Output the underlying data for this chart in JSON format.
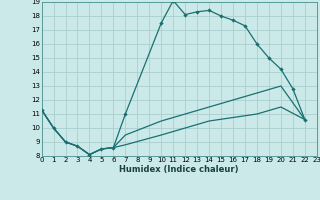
{
  "xlabel": "Humidex (Indice chaleur)",
  "bg_color": "#cce9e9",
  "grid_color": "#aacfcf",
  "line_color": "#1a7070",
  "xlim": [
    0,
    23
  ],
  "ylim": [
    8,
    19
  ],
  "yticks": [
    8,
    9,
    10,
    11,
    12,
    13,
    14,
    15,
    16,
    17,
    18,
    19
  ],
  "xticks": [
    0,
    1,
    2,
    3,
    4,
    5,
    6,
    7,
    8,
    9,
    10,
    11,
    12,
    13,
    14,
    15,
    16,
    17,
    18,
    19,
    20,
    21,
    22,
    23
  ],
  "line1_x": [
    0,
    1,
    2,
    3,
    4,
    5,
    6,
    7,
    10,
    11,
    12,
    13,
    14,
    15,
    16,
    17,
    18,
    19,
    20,
    21,
    22
  ],
  "line1_y": [
    11.3,
    10.0,
    9.0,
    8.7,
    8.1,
    8.5,
    8.6,
    11.0,
    17.5,
    19.1,
    18.1,
    18.3,
    18.4,
    18.0,
    17.7,
    17.3,
    16.0,
    15.0,
    14.2,
    12.8,
    10.6
  ],
  "line2_x": [
    0,
    1,
    2,
    3,
    4,
    5,
    6,
    7,
    10,
    14,
    18,
    20,
    22
  ],
  "line2_y": [
    11.3,
    10.0,
    9.0,
    8.7,
    8.1,
    8.5,
    8.6,
    9.5,
    10.5,
    11.5,
    12.5,
    13.0,
    10.6
  ],
  "line3_x": [
    0,
    1,
    2,
    3,
    4,
    5,
    6,
    7,
    10,
    14,
    18,
    20,
    22
  ],
  "line3_y": [
    11.3,
    10.0,
    9.0,
    8.7,
    8.1,
    8.5,
    8.6,
    8.8,
    9.5,
    10.5,
    11.0,
    11.5,
    10.6
  ]
}
